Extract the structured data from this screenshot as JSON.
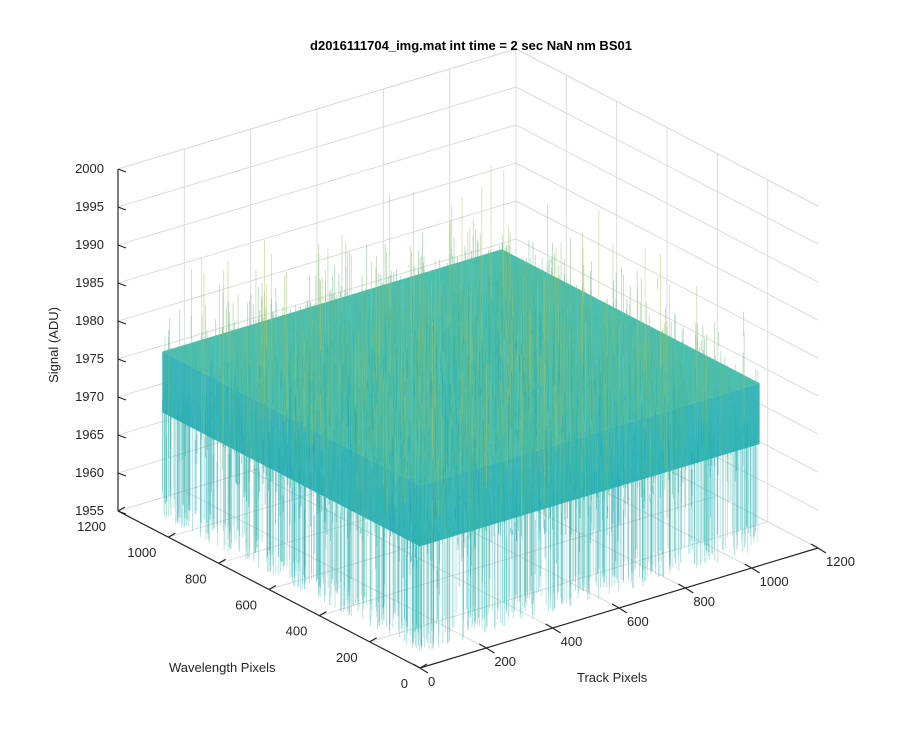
{
  "chart_data": {
    "type": "surface",
    "title": "d2016111704_img.mat int time = 2 sec  NaN nm BS01",
    "xlabel": "Track Pixels",
    "ylabel": "Wavelength Pixels",
    "zlabel": "Signal (ADU)",
    "x_range": [
      0,
      1200
    ],
    "y_range": [
      0,
      1200
    ],
    "z_range": [
      1955,
      2000
    ],
    "x_ticks": [
      "0",
      "200",
      "400",
      "600",
      "800",
      "1000",
      "1200"
    ],
    "y_ticks": [
      "0",
      "200",
      "400",
      "600",
      "800",
      "1000",
      "1200"
    ],
    "z_ticks": [
      "1955",
      "1960",
      "1965",
      "1970",
      "1975",
      "1980",
      "1985",
      "1990",
      "1995",
      "2000"
    ],
    "grid": true,
    "colormap": "parula",
    "surface": {
      "x_extent": [
        0,
        1024
      ],
      "y_extent": [
        0,
        1024
      ],
      "mean_signal": 1975,
      "noise_range": [
        1957,
        1995
      ]
    },
    "colors": {
      "low": "#1f77c4",
      "mid": "#26b5b0",
      "high": "#d9c74a"
    }
  }
}
